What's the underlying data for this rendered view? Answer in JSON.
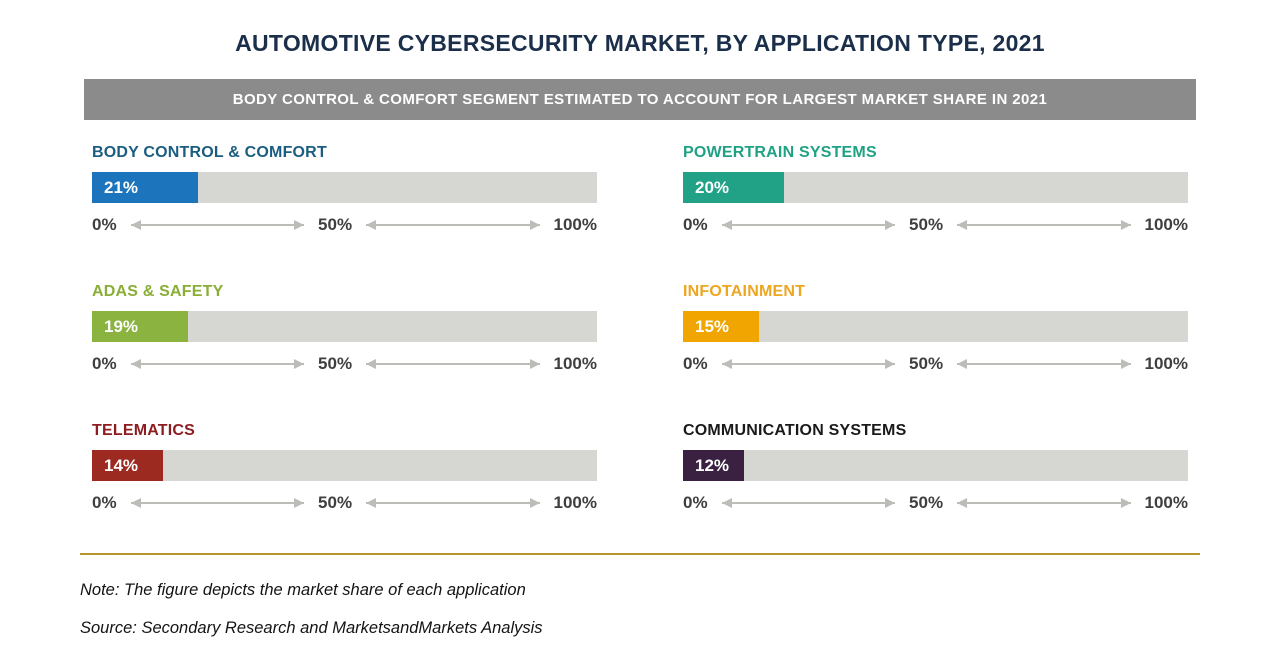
{
  "title": "AUTOMOTIVE CYBERSECURITY MARKET, BY APPLICATION TYPE, 2021",
  "banner": "BODY CONTROL & COMFORT SEGMENT ESTIMATED TO ACCOUNT FOR LARGEST MARKET SHARE IN 2021",
  "note": "Note: The figure depicts the market share of each application",
  "source": "Source: Secondary Research and MarketsandMarkets Analysis",
  "axis": {
    "start": "0%",
    "mid": "50%",
    "end": "100%"
  },
  "chart_data": {
    "type": "bar",
    "title": "Automotive Cybersecurity Market, by Application Type, 2021",
    "categories": [
      "BODY CONTROL & COMFORT",
      "POWERTRAIN SYSTEMS",
      "ADAS & SAFETY",
      "INFOTAINMENT",
      "TELEMATICS",
      "COMMUNICATION SYSTEMS"
    ],
    "values": [
      21,
      20,
      19,
      15,
      14,
      12
    ],
    "unit": "%",
    "xlim": [
      0,
      100
    ],
    "xticks": [
      "0%",
      "50%",
      "100%"
    ],
    "layout": "six small horizontal bars, 2 columns x 3 rows",
    "charts": [
      {
        "label": "BODY CONTROL & COMFORT",
        "value": 21,
        "value_label": "21%",
        "color": "#1c75bc",
        "label_color": "#1a5d80"
      },
      {
        "label": "POWERTRAIN SYSTEMS",
        "value": 20,
        "value_label": "20%",
        "color": "#21a286",
        "label_color": "#1fa283"
      },
      {
        "label": "ADAS & SAFETY",
        "value": 19,
        "value_label": "19%",
        "color": "#8ab33f",
        "label_color": "#8aad36"
      },
      {
        "label": "INFOTAINMENT",
        "value": 15,
        "value_label": "15%",
        "color": "#f0a500",
        "label_color": "#eda califa"
      },
      {
        "label": "TELEMATICS",
        "value": 14,
        "value_label": "14%",
        "color": "#9c2a21",
        "label_color": "#8c1d20"
      },
      {
        "label": "COMMUNICATION SYSTEMS",
        "value": 12,
        "value_label": "12%",
        "color": "#3a2142",
        "label_color": "#1a1a1a"
      }
    ]
  }
}
